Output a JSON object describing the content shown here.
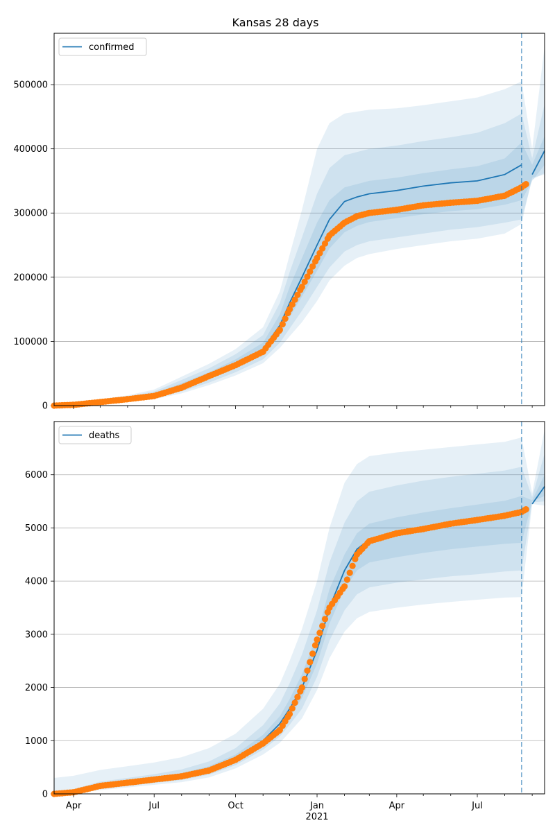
{
  "figure": {
    "title": "Kansas 28 days",
    "x_tick_labels": [
      "Apr",
      "Jul",
      "Oct",
      "Jan",
      "Apr",
      "Jul"
    ],
    "x_year_label": "2021",
    "forecast_start": "2021-08-20"
  },
  "colors": {
    "line": "#1f77b4",
    "observed": "#ff7f0e",
    "band": "#1f77b4",
    "grid": "#b0b0b0",
    "axis": "#000000"
  },
  "chart_data": [
    {
      "type": "line",
      "legend": "confirmed",
      "legend_position": "top-left",
      "xlim": [
        "2020-03-10",
        "2021-09-15"
      ],
      "ylim": [
        0,
        580000
      ],
      "grid_y": true,
      "y_ticks": [
        0,
        100000,
        200000,
        300000,
        400000,
        500000
      ],
      "y_tick_labels": [
        "0",
        "100000",
        "200000",
        "300000",
        "400000",
        "500000"
      ],
      "model": {
        "x": [
          "2020-03-10",
          "2020-04-01",
          "2020-05-01",
          "2020-06-01",
          "2020-07-01",
          "2020-08-01",
          "2020-09-01",
          "2020-10-01",
          "2020-11-01",
          "2020-11-20",
          "2020-12-01",
          "2020-12-15",
          "2021-01-01",
          "2021-01-15",
          "2021-02-01",
          "2021-02-15",
          "2021-03-01",
          "2021-04-01",
          "2021-05-01",
          "2021-06-01",
          "2021-07-01",
          "2021-08-01",
          "2021-08-20",
          "2021-09-01",
          "2021-09-15"
        ],
        "y": [
          0,
          1500,
          6000,
          10000,
          16000,
          30000,
          46000,
          64000,
          88000,
          125000,
          160000,
          200000,
          250000,
          290000,
          318000,
          325000,
          330000,
          335000,
          342000,
          347000,
          350000,
          360000,
          375000,
          360000,
          397000
        ]
      },
      "bands": [
        {
          "level": "inner",
          "lower": [
            0,
            1200,
            5000,
            8500,
            13500,
            26000,
            41000,
            58000,
            80000,
            110000,
            138000,
            170000,
            210000,
            245000,
            270000,
            280000,
            286000,
            292000,
            298000,
            303000,
            306000,
            313000,
            320000,
            350000,
            375000
          ],
          "upper": [
            0,
            1800,
            7200,
            12000,
            19000,
            35000,
            52000,
            72000,
            98000,
            142000,
            185000,
            230000,
            285000,
            320000,
            340000,
            345000,
            350000,
            355000,
            362000,
            368000,
            373000,
            385000,
            410000,
            375000,
            420000
          ]
        },
        {
          "level": "middle",
          "lower": [
            0,
            900,
            4200,
            7000,
            11500,
            22000,
            36000,
            52000,
            72000,
            98000,
            120000,
            148000,
            185000,
            215000,
            240000,
            250000,
            256000,
            262000,
            268000,
            274000,
            278000,
            285000,
            290000,
            352000,
            362000
          ],
          "upper": [
            0,
            2200,
            8500,
            14000,
            22000,
            40000,
            58000,
            80000,
            110000,
            160000,
            208000,
            262000,
            330000,
            370000,
            390000,
            395000,
            400000,
            405000,
            412000,
            418000,
            425000,
            440000,
            455000,
            385000,
            470000
          ]
        },
        {
          "level": "outer",
          "lower": [
            0,
            700,
            3500,
            6000,
            10000,
            19000,
            32000,
            47000,
            66000,
            90000,
            108000,
            130000,
            163000,
            195000,
            218000,
            230000,
            236000,
            244000,
            250000,
            256000,
            260000,
            268000,
            283000,
            355000,
            360000
          ],
          "upper": [
            0,
            2600,
            9800,
            16000,
            25000,
            45000,
            65000,
            88000,
            122000,
            178000,
            235000,
            305000,
            400000,
            440000,
            455000,
            458000,
            461000,
            463000,
            468000,
            474000,
            480000,
            493000,
            505000,
            400000,
            560000
          ]
        }
      ],
      "observed": {
        "x": [
          "2020-03-10",
          "2020-04-01",
          "2020-05-01",
          "2020-06-01",
          "2020-07-01",
          "2020-08-01",
          "2020-09-01",
          "2020-10-01",
          "2020-11-01",
          "2020-11-20",
          "2020-12-01",
          "2020-12-15",
          "2021-01-01",
          "2021-01-15",
          "2021-02-01",
          "2021-02-15",
          "2021-03-01",
          "2021-04-01",
          "2021-05-01",
          "2021-06-01",
          "2021-07-01",
          "2021-08-01",
          "2021-08-20",
          "2021-08-25"
        ],
        "y": [
          0,
          1200,
          5500,
          10000,
          15000,
          28000,
          46000,
          63000,
          84000,
          118000,
          150000,
          185000,
          230000,
          265000,
          285000,
          295000,
          300000,
          305000,
          312000,
          316000,
          319000,
          327000,
          340000,
          345000
        ]
      }
    },
    {
      "type": "line",
      "legend": "deaths",
      "legend_position": "top-left",
      "xlim": [
        "2020-03-10",
        "2021-09-15"
      ],
      "ylim": [
        0,
        7000
      ],
      "grid_y": true,
      "y_ticks": [
        0,
        1000,
        2000,
        3000,
        4000,
        5000,
        6000
      ],
      "y_tick_labels": [
        "0",
        "1000",
        "2000",
        "3000",
        "4000",
        "5000",
        "6000"
      ],
      "model": {
        "x": [
          "2020-03-10",
          "2020-04-01",
          "2020-05-01",
          "2020-06-01",
          "2020-07-01",
          "2020-08-01",
          "2020-09-01",
          "2020-10-01",
          "2020-11-01",
          "2020-11-20",
          "2020-12-01",
          "2020-12-15",
          "2021-01-01",
          "2021-01-15",
          "2021-02-01",
          "2021-02-15",
          "2021-03-01",
          "2021-04-01",
          "2021-05-01",
          "2021-06-01",
          "2021-07-01",
          "2021-08-01",
          "2021-08-20",
          "2021-09-01",
          "2021-09-15"
        ],
        "y": [
          0,
          30,
          140,
          210,
          270,
          340,
          460,
          660,
          1000,
          1320,
          1600,
          2000,
          2700,
          3500,
          4200,
          4600,
          4780,
          4900,
          4990,
          5080,
          5150,
          5210,
          5280,
          5450,
          5780
        ]
      },
      "bands": [
        {
          "level": "inner",
          "lower": [
            0,
            20,
            110,
            180,
            240,
            300,
            410,
            600,
            920,
            1200,
            1450,
            1800,
            2450,
            3200,
            3850,
            4200,
            4350,
            4450,
            4530,
            4600,
            4650,
            4700,
            4720,
            5500,
            5600
          ],
          "upper": [
            0,
            50,
            180,
            250,
            310,
            390,
            520,
            740,
            1110,
            1460,
            1780,
            2250,
            3000,
            3850,
            4500,
            4900,
            5080,
            5200,
            5290,
            5370,
            5440,
            5510,
            5600,
            5520,
            6000
          ]
        },
        {
          "level": "middle",
          "lower": [
            0,
            10,
            90,
            150,
            205,
            260,
            360,
            540,
            830,
            1080,
            1300,
            1600,
            2200,
            2880,
            3450,
            3750,
            3880,
            3970,
            4030,
            4090,
            4130,
            4180,
            4200,
            5480,
            5500
          ],
          "upper": [
            0,
            90,
            230,
            300,
            370,
            460,
            610,
            860,
            1290,
            1700,
            2080,
            2620,
            3450,
            4350,
            5100,
            5500,
            5680,
            5800,
            5890,
            5960,
            6020,
            6080,
            6150,
            5580,
            6400
          ]
        },
        {
          "level": "outer",
          "lower": [
            0,
            0,
            70,
            120,
            170,
            220,
            310,
            480,
            740,
            960,
            1160,
            1420,
            1950,
            2550,
            3050,
            3300,
            3420,
            3500,
            3560,
            3610,
            3650,
            3690,
            3700,
            5450,
            5420
          ],
          "upper": [
            300,
            340,
            450,
            520,
            590,
            690,
            860,
            1130,
            1600,
            2070,
            2500,
            3100,
            4000,
            5000,
            5850,
            6200,
            6350,
            6420,
            6470,
            6520,
            6570,
            6620,
            6700,
            5650,
            6850
          ]
        }
      ],
      "observed": {
        "x": [
          "2020-03-10",
          "2020-04-01",
          "2020-05-01",
          "2020-06-01",
          "2020-07-01",
          "2020-08-01",
          "2020-09-01",
          "2020-10-01",
          "2020-11-01",
          "2020-11-20",
          "2020-12-01",
          "2020-12-15",
          "2021-01-01",
          "2021-01-15",
          "2021-02-01",
          "2021-02-15",
          "2021-03-01",
          "2021-04-01",
          "2021-05-01",
          "2021-06-01",
          "2021-07-01",
          "2021-08-01",
          "2021-08-20",
          "2021-08-25"
        ],
        "y": [
          0,
          30,
          150,
          210,
          270,
          330,
          440,
          640,
          950,
          1200,
          1500,
          2000,
          2900,
          3500,
          3900,
          4500,
          4750,
          4900,
          4980,
          5080,
          5150,
          5230,
          5300,
          5350
        ]
      }
    }
  ]
}
